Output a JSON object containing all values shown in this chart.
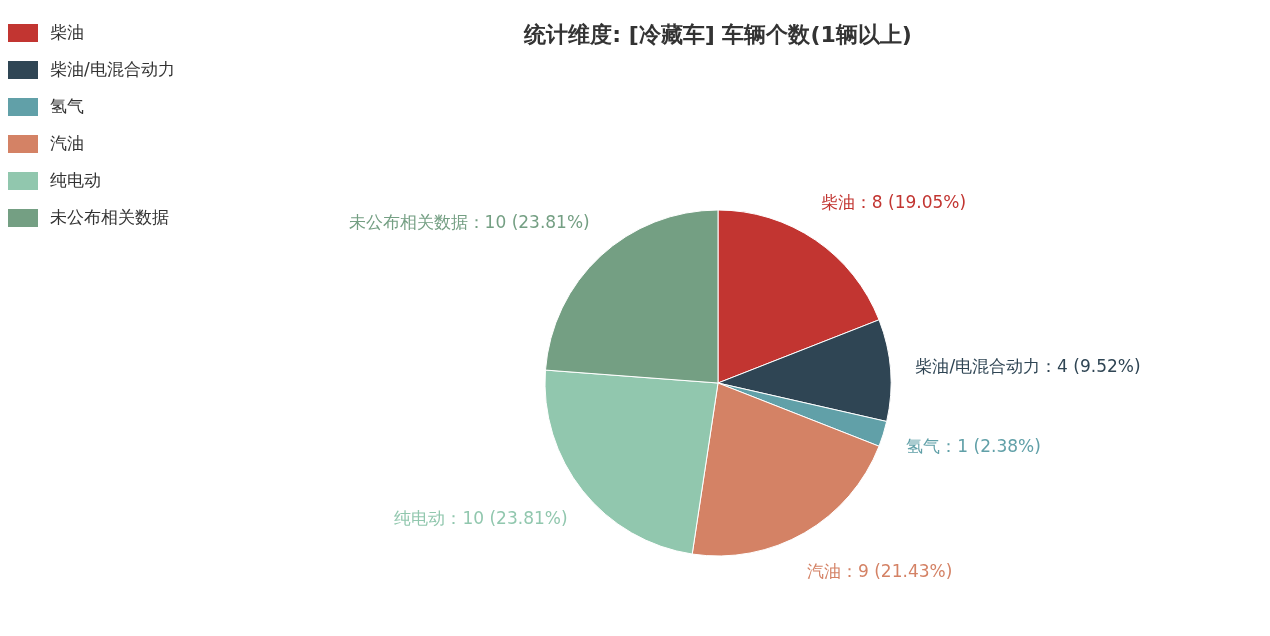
{
  "chart_data": {
    "type": "pie",
    "title": "统计维度: [冷藏车] 车辆个数(1辆以上)",
    "categories": [
      "柴油",
      "柴油/电混合动力",
      "氢气",
      "汽油",
      "纯电动",
      "未公布相关数据"
    ],
    "values": [
      8,
      4,
      1,
      9,
      10,
      10
    ],
    "colors": [
      "#c23531",
      "#2f4554",
      "#61a0a8",
      "#d48265",
      "#91c7ae",
      "#749f83"
    ],
    "value_labels": [
      "柴油：8 (19.05%)",
      "柴油/电混合动力：4 (9.52%)",
      "氢气：1 (2.38%)",
      "汽油：9 (21.43%)",
      "纯电动：10 (23.81%)",
      "未公布相关数据：10 (23.81%)"
    ],
    "legend": "top left"
  }
}
